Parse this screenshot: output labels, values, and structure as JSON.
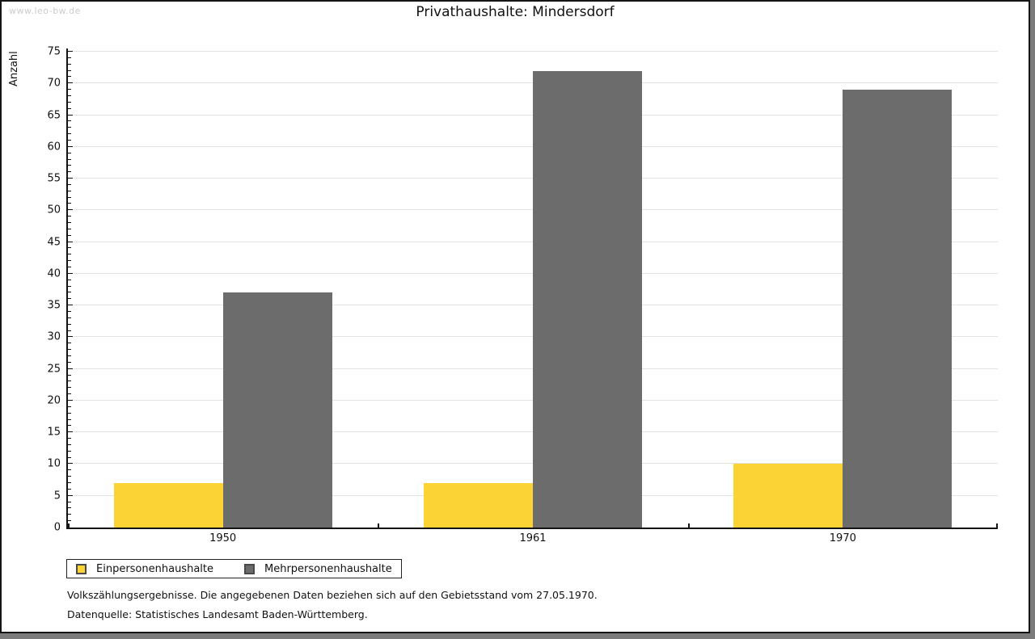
{
  "watermark": "www.leo-bw.de",
  "title": "Privathaushalte: Mindersdorf",
  "chart_data": {
    "type": "bar",
    "title": "Privathaushalte: Mindersdorf",
    "categories": [
      "1950",
      "1961",
      "1970"
    ],
    "series": [
      {
        "name": "Einpersonenhaushalte",
        "color": "#fbd335",
        "values": [
          7,
          7,
          10
        ]
      },
      {
        "name": "Mehrpersonenhaushalte",
        "color": "#6c6c6c",
        "values": [
          37,
          72,
          69
        ]
      }
    ],
    "xlabel": "",
    "ylabel": "Anzahl",
    "ylim": [
      0,
      75
    ],
    "ytick_step": 5,
    "minor_tick_step": 1,
    "grid": true,
    "legend_position": "bottom-left"
  },
  "footnotes": {
    "line1": "Volkszählungsergebnisse. Die angegebenen Daten beziehen sich auf den Gebietsstand vom 27.05.1970.",
    "line2": "Datenquelle: Statistisches Landesamt Baden-Württemberg."
  }
}
